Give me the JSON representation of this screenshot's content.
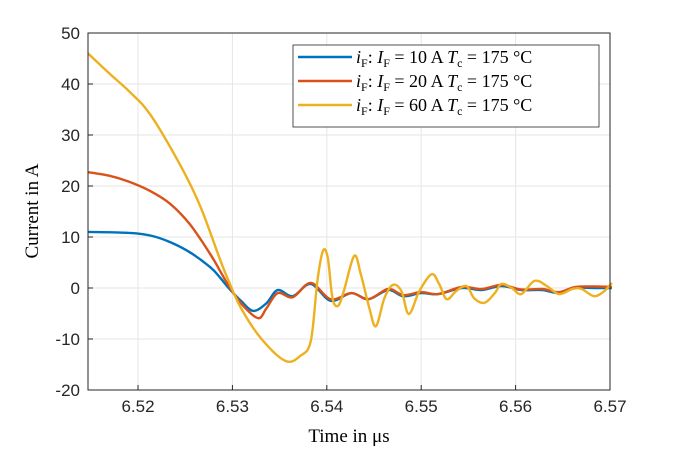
{
  "chart_data": {
    "type": "line",
    "title": "",
    "xlabel": "Time in μs",
    "ylabel": "Current in A",
    "xlim": [
      6.5147,
      6.57
    ],
    "ylim": [
      -20,
      50
    ],
    "xticks": [
      6.52,
      6.53,
      6.54,
      6.55,
      6.56,
      6.57
    ],
    "xtick_labels": [
      "6.52",
      "6.53",
      "6.54",
      "6.55",
      "6.56",
      "6.57"
    ],
    "yticks": [
      -20,
      -10,
      0,
      10,
      20,
      30,
      40,
      50
    ],
    "ytick_labels": [
      "-20",
      "-10",
      "0",
      "10",
      "20",
      "30",
      "40",
      "50"
    ],
    "grid": true,
    "legend_placement": "top-right",
    "series": [
      {
        "name": "iF:  IF = 10 A    Tc = 175 °C",
        "color": "#0072BD",
        "x": [
          6.5147,
          6.5191,
          6.5213,
          6.5234,
          6.5255,
          6.5277,
          6.5287,
          6.5296,
          6.5309,
          6.5322,
          6.5336,
          6.5348,
          6.5364,
          6.5383,
          6.5404,
          6.5426,
          6.5444,
          6.5465,
          6.5481,
          6.55,
          6.5518,
          6.5543,
          6.5564,
          6.5585,
          6.5606,
          6.5628,
          6.5646,
          6.5663,
          6.5684,
          6.5702
        ],
        "y": [
          11,
          10.8,
          10.3,
          9,
          7,
          4,
          2,
          0,
          -2.5,
          -4.5,
          -3,
          -0.4,
          -1.6,
          0.8,
          -2.5,
          -1,
          -2.2,
          -0.4,
          -1.6,
          -1,
          -1.2,
          0,
          -0.4,
          0.4,
          -0.4,
          -0.4,
          -1,
          0,
          0,
          0
        ]
      },
      {
        "name": "iF:  IF = 20 A    Tc = 175 °C",
        "color": "#D95319",
        "x": [
          6.5147,
          6.517,
          6.5191,
          6.5213,
          6.5234,
          6.5255,
          6.5277,
          6.5287,
          6.5296,
          6.5309,
          6.5327,
          6.5336,
          6.5348,
          6.5364,
          6.5383,
          6.5404,
          6.5426,
          6.5444,
          6.5465,
          6.5481,
          6.55,
          6.5518,
          6.5543,
          6.5564,
          6.5585,
          6.5606,
          6.5628,
          6.5646,
          6.5663,
          6.5684,
          6.5702
        ],
        "y": [
          22.7,
          22,
          20.8,
          19,
          16.5,
          12.5,
          6.5,
          3.3,
          0.5,
          -3,
          -5.9,
          -4,
          -1,
          -1.8,
          1,
          -2.2,
          -1,
          -2.2,
          -0.2,
          -1.4,
          -0.8,
          -1.2,
          0.2,
          -0.2,
          0.6,
          -0.3,
          -0.2,
          -0.8,
          0.2,
          0.3,
          0.2
        ]
      },
      {
        "name": "iF:  IF = 60 A    Tc = 175 °C",
        "color": "#EDB120",
        "x": [
          6.5147,
          6.517,
          6.5191,
          6.5213,
          6.5245,
          6.5266,
          6.5287,
          6.5296,
          6.5309,
          6.533,
          6.5356,
          6.5372,
          6.5383,
          6.539,
          6.5396,
          6.5401,
          6.5406,
          6.5412,
          6.5418,
          6.5429,
          6.5436,
          6.5445,
          6.5452,
          6.5461,
          6.547,
          6.5479,
          6.5487,
          6.5498,
          6.5511,
          6.5519,
          6.5527,
          6.5537,
          6.5548,
          6.5556,
          6.5567,
          6.5578,
          6.5585,
          6.5596,
          6.5606,
          6.562,
          6.5633,
          6.5646,
          6.566,
          6.567,
          6.5683,
          6.5694,
          6.5702
        ],
        "y": [
          46,
          42,
          38.5,
          34,
          24,
          16,
          5.5,
          1.4,
          -3.9,
          -9.8,
          -14.3,
          -13.3,
          -10.4,
          1.4,
          7.3,
          5.9,
          -2,
          -3.5,
          -0.6,
          6.3,
          2.7,
          -3.9,
          -7.5,
          -2,
          0.6,
          -0.6,
          -5.1,
          -0.6,
          2.7,
          0.8,
          -2.2,
          -0.6,
          0.4,
          -2,
          -2.9,
          -1,
          0.8,
          0,
          -1.2,
          1.4,
          0.4,
          -1.2,
          -0.2,
          -0.2,
          -1.6,
          -0.6,
          1
        ]
      }
    ],
    "legend": [
      {
        "i": "i",
        "isub": "F",
        "I": "I",
        "Isub": "F",
        "val": " = 10 A",
        "T": "T",
        "Tsub": "c",
        "tval": " = 175 °C"
      },
      {
        "i": "i",
        "isub": "F",
        "I": "I",
        "Isub": "F",
        "val": " = 20 A",
        "T": "T",
        "Tsub": "c",
        "tval": " = 175 °C"
      },
      {
        "i": "i",
        "isub": "F",
        "I": "I",
        "Isub": "F",
        "val": " = 60 A",
        "T": "T",
        "Tsub": "c",
        "tval": " = 175 °C"
      }
    ]
  }
}
